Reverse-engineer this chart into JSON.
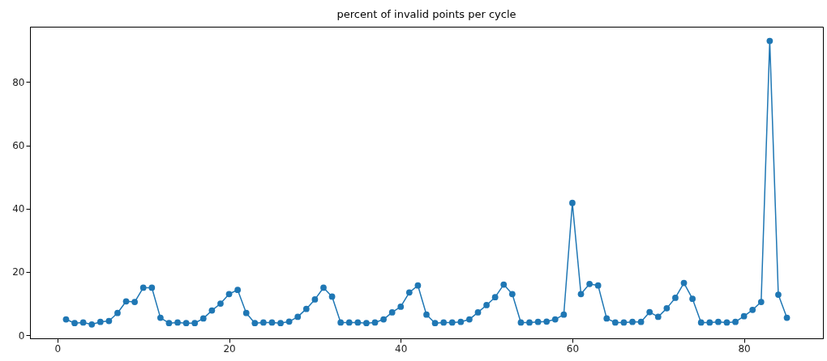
{
  "chart_data": {
    "type": "line",
    "title": "percent of invalid points per cycle",
    "x": [
      1,
      2,
      3,
      4,
      5,
      6,
      7,
      8,
      9,
      10,
      11,
      12,
      13,
      14,
      15,
      16,
      17,
      18,
      19,
      20,
      21,
      22,
      23,
      24,
      25,
      26,
      27,
      28,
      29,
      30,
      31,
      32,
      33,
      34,
      35,
      36,
      37,
      38,
      39,
      40,
      41,
      42,
      43,
      44,
      45,
      46,
      47,
      48,
      49,
      50,
      51,
      52,
      53,
      54,
      55,
      56,
      57,
      58,
      59,
      60,
      61,
      62,
      63,
      64,
      65,
      66,
      67,
      68,
      69,
      70,
      71,
      72,
      73,
      74,
      75,
      76,
      77,
      78,
      79,
      80,
      81,
      82,
      83,
      84,
      85
    ],
    "series": [
      {
        "color": "#1f77b4",
        "values": [
          5,
          3.8,
          4,
          3.4,
          4.2,
          4.5,
          7,
          10.7,
          10.5,
          15,
          15,
          5.5,
          3.8,
          4,
          3.8,
          3.8,
          5.3,
          7.8,
          10,
          13,
          14.3,
          7,
          3.8,
          4,
          4,
          3.8,
          4.3,
          5.8,
          8.3,
          11.3,
          15,
          12.2,
          4,
          4,
          4,
          3.8,
          4,
          5,
          7.2,
          9,
          13.5,
          15.7,
          6.5,
          3.8,
          4,
          4,
          4.2,
          5,
          7.2,
          9.5,
          12,
          16,
          13,
          4,
          4,
          4.2,
          4.3,
          5,
          6.5,
          41.8,
          13,
          16.2,
          15.7,
          5.3,
          4,
          4,
          4.2,
          4.2,
          7.3,
          5.8,
          8.5,
          11.8,
          16.5,
          11.5,
          4,
          4,
          4.2,
          4,
          4.2,
          6,
          8,
          10.5,
          93,
          12.8,
          5.5
        ]
      }
    ],
    "xlim": [
      -3.2,
      89.2
    ],
    "ylim": [
      -1,
      97.5
    ],
    "xticks": [
      0,
      20,
      40,
      60,
      80
    ],
    "yticks": [
      0,
      20,
      40,
      60,
      80
    ],
    "grid": false,
    "marker": "circle",
    "line_style": "solid"
  }
}
